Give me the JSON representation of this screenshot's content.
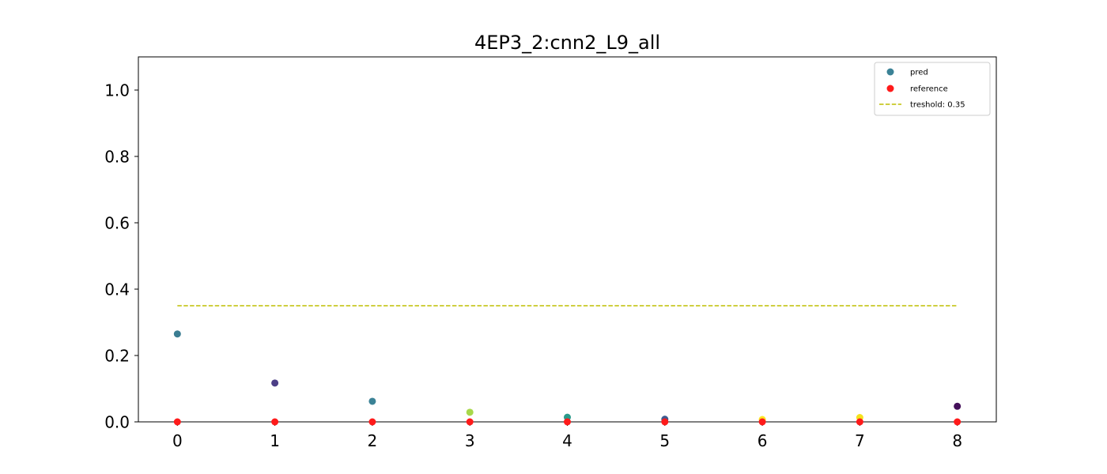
{
  "chart_data": {
    "type": "scatter",
    "title": "4EP3_2:cnn2_L9_all",
    "xlabel": "",
    "ylabel": "",
    "xlim": [
      -0.4,
      8.4
    ],
    "ylim": [
      0,
      1.1
    ],
    "xticks": [
      "0",
      "1",
      "2",
      "3",
      "4",
      "5",
      "6",
      "7",
      "8"
    ],
    "yticks": [
      "0.0",
      "0.2",
      "0.4",
      "0.6",
      "0.8",
      "1.0"
    ],
    "grid": false,
    "legend_position": "top-right",
    "series": [
      {
        "name": "pred",
        "marker": "circle",
        "legend_color": "#3b8296",
        "points": [
          {
            "x": 0,
            "y": 0.265,
            "color": "#3b7d92"
          },
          {
            "x": 1,
            "y": 0.117,
            "color": "#4c3f87"
          },
          {
            "x": 2,
            "y": 0.062,
            "color": "#3b8296"
          },
          {
            "x": 3,
            "y": 0.029,
            "color": "#a8d84a"
          },
          {
            "x": 4,
            "y": 0.014,
            "color": "#2a9a8a"
          },
          {
            "x": 5,
            "y": 0.008,
            "color": "#3e5a8f"
          },
          {
            "x": 6,
            "y": 0.007,
            "color": "#fde725"
          },
          {
            "x": 7,
            "y": 0.013,
            "color": "#f5e21d"
          },
          {
            "x": 8,
            "y": 0.047,
            "color": "#44105a"
          }
        ]
      },
      {
        "name": "reference",
        "marker": "circle",
        "legend_color": "#ff1a1a",
        "points": [
          {
            "x": 0,
            "y": 0.0,
            "color": "#ff1a1a"
          },
          {
            "x": 1,
            "y": 0.0,
            "color": "#ff1a1a"
          },
          {
            "x": 2,
            "y": 0.0,
            "color": "#ff1a1a"
          },
          {
            "x": 3,
            "y": 0.0,
            "color": "#ff1a1a"
          },
          {
            "x": 4,
            "y": 0.0,
            "color": "#ff1a1a"
          },
          {
            "x": 5,
            "y": 0.0,
            "color": "#ff1a1a"
          },
          {
            "x": 6,
            "y": 0.0,
            "color": "#ff1a1a"
          },
          {
            "x": 7,
            "y": 0.0,
            "color": "#ff1a1a"
          },
          {
            "x": 8,
            "y": 0.0,
            "color": "#ff1a1a"
          }
        ]
      }
    ],
    "threshold": {
      "name": "treshold: 0.35",
      "value": 0.35,
      "x_range": [
        0,
        8
      ],
      "style": "dashed",
      "color": "#bfbf00"
    }
  }
}
